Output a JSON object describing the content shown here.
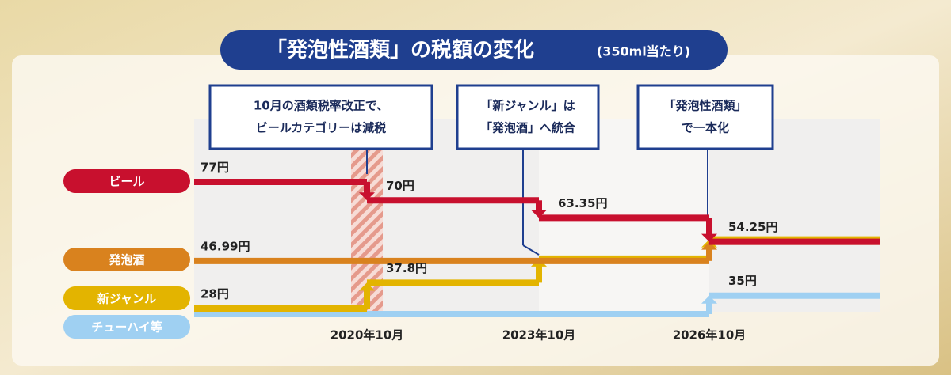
{
  "chart_data": {
    "type": "step",
    "title": "「発泡性酒類」の税額の変化",
    "subtitle": "(350ml当たり)",
    "categories": [
      null,
      "2020年10月",
      "2023年10月",
      "2026年10月"
    ],
    "series": [
      {
        "name": "ビール",
        "color": "#c8102e",
        "values": [
          77,
          70,
          63.35,
          54.25
        ],
        "value_labels": [
          "77円",
          "70円",
          "63.35円",
          "54.25円"
        ]
      },
      {
        "name": "発泡酒",
        "color": "#d9821e",
        "values": [
          46.99,
          46.99,
          46.99,
          54.25
        ],
        "value_labels": [
          "46.99円",
          null,
          null,
          null
        ]
      },
      {
        "name": "新ジャンル",
        "color": "#e3b400",
        "values": [
          28,
          37.8,
          46.99,
          54.25
        ],
        "value_labels": [
          "28円",
          "37.8円",
          null,
          null
        ]
      },
      {
        "name": "チューハイ等",
        "color": "#9fd0f2",
        "values": [
          28,
          28,
          28,
          35
        ],
        "value_labels": [
          null,
          null,
          null,
          "35円"
        ]
      }
    ],
    "annotations": [
      [
        "10月の酒類税率改正で、",
        "ビールカテゴリーは減税"
      ],
      [
        "「新ジャンル」は",
        "「発泡酒」へ統合"
      ],
      [
        "「発泡性酒類」",
        "で一本化"
      ]
    ]
  }
}
